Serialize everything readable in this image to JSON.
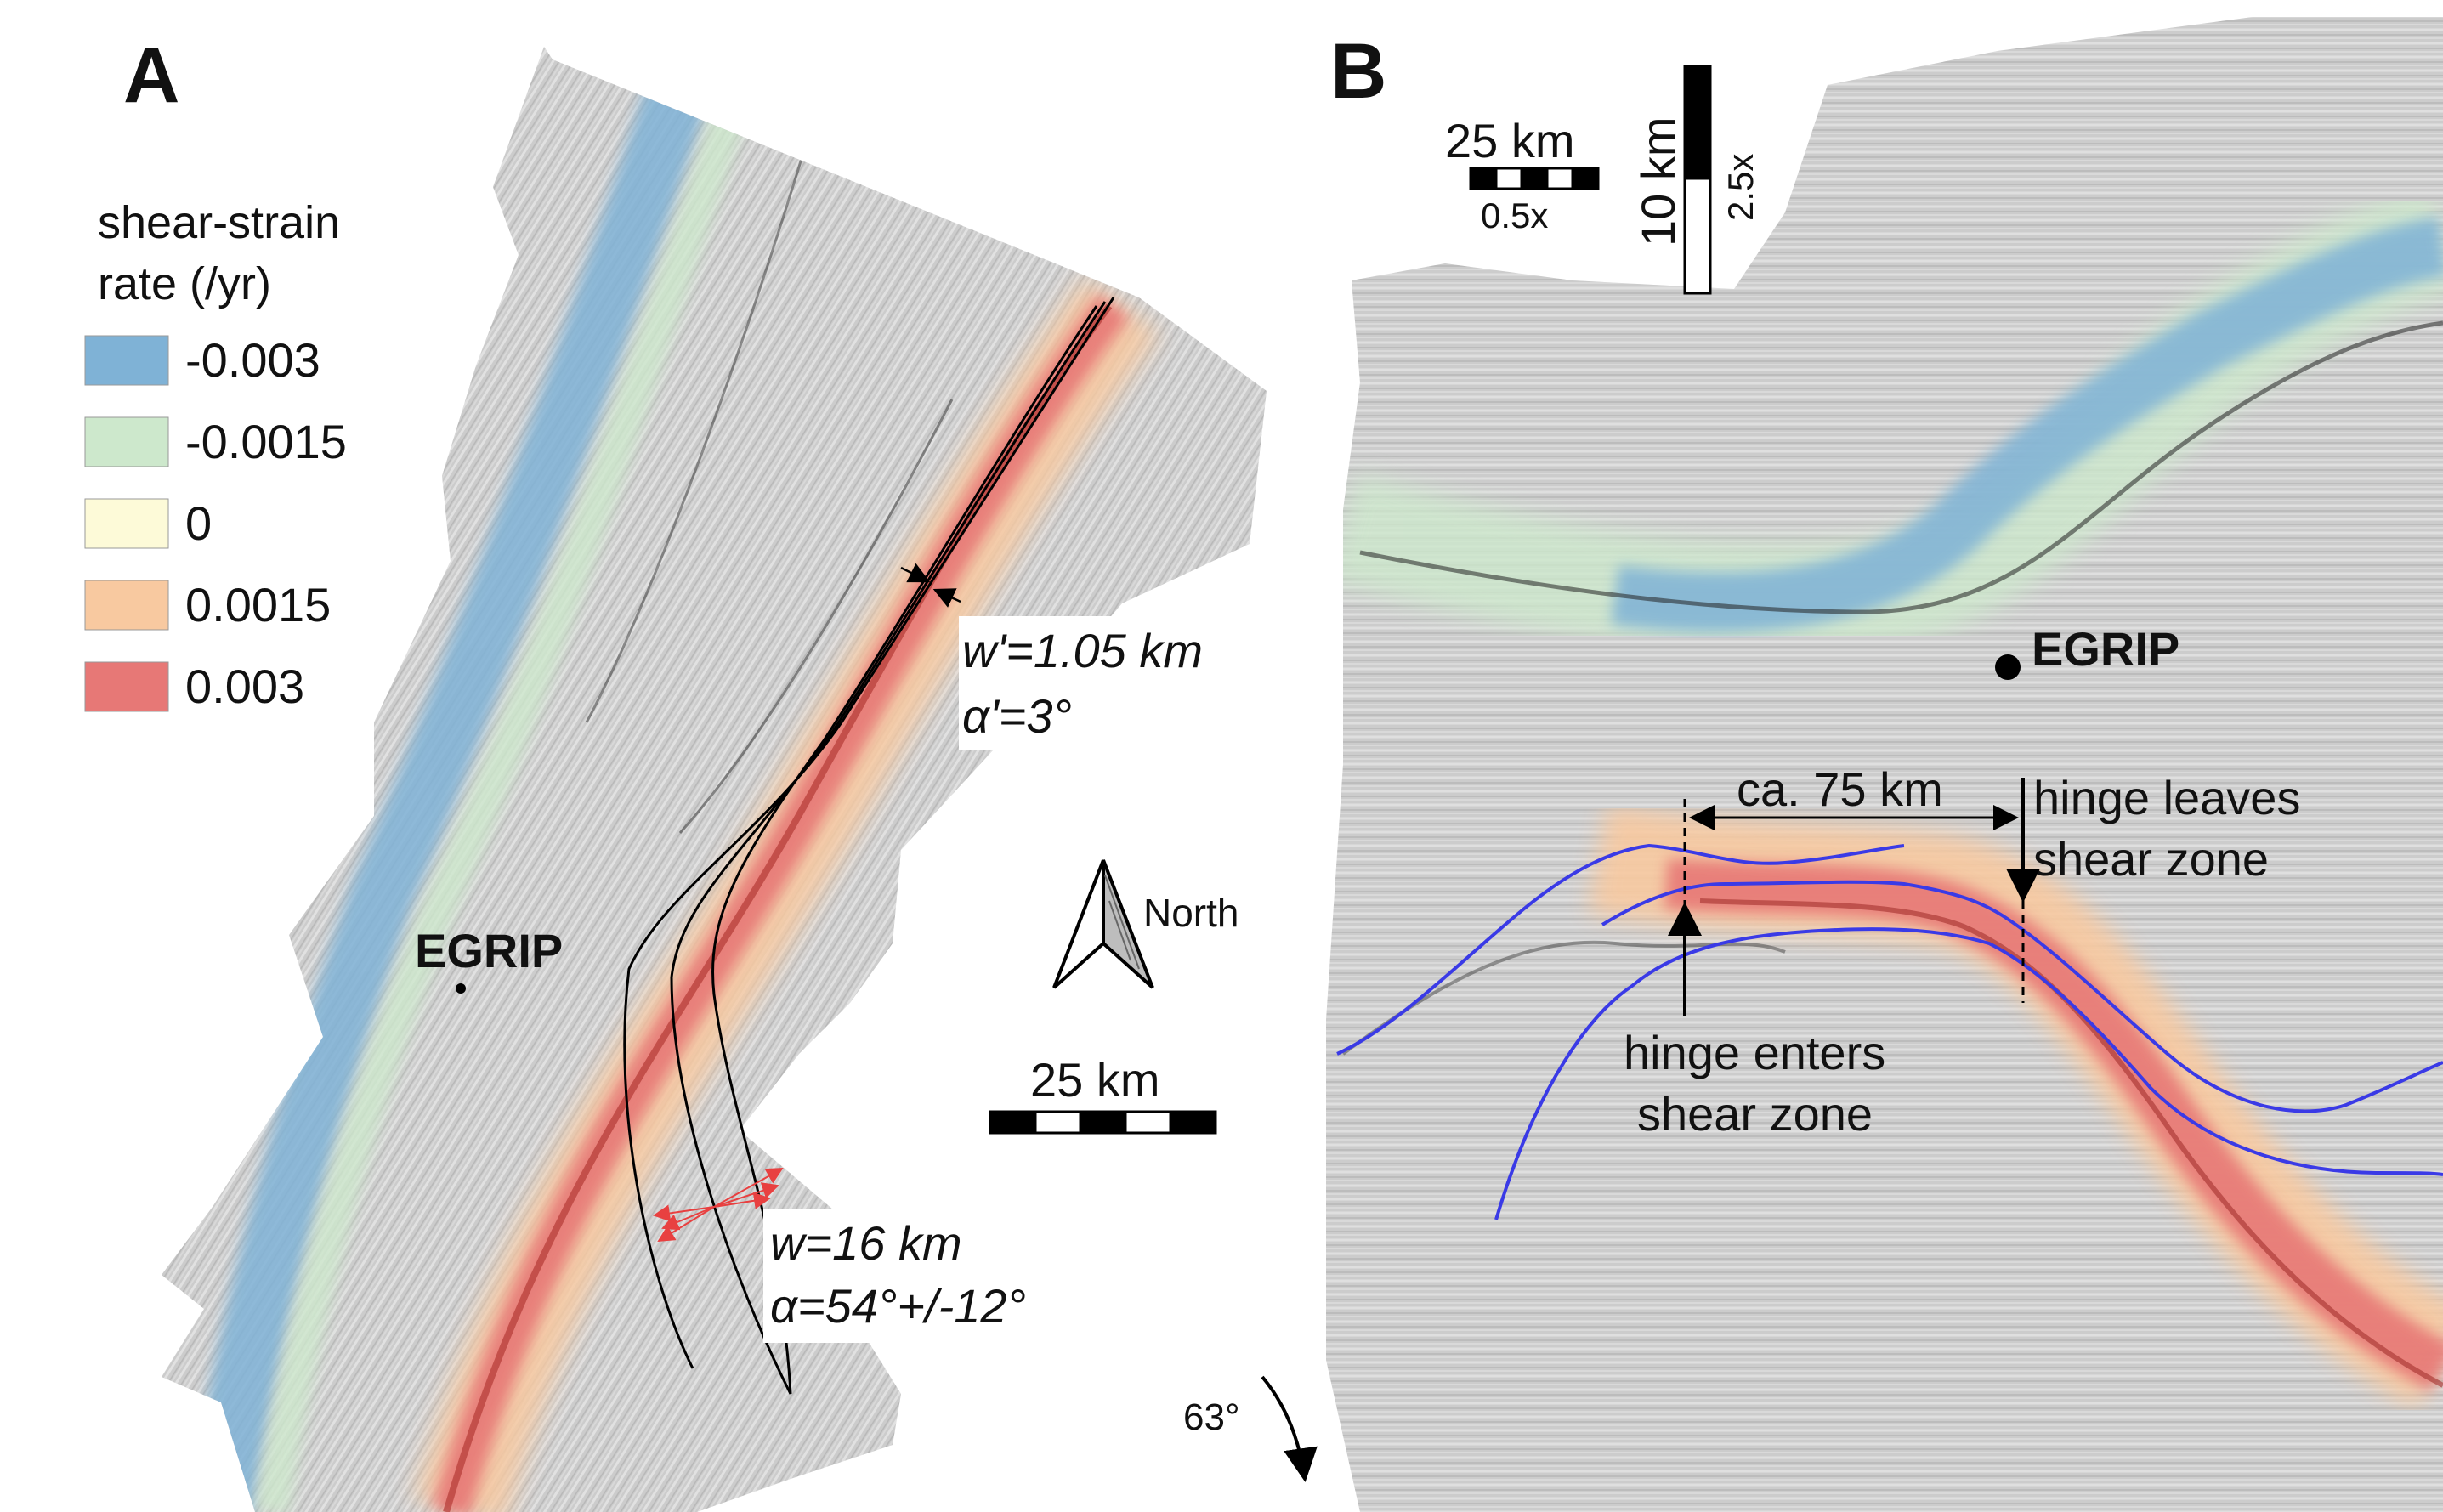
{
  "panel_a": {
    "label": "A",
    "legend": {
      "title_line1": "shear-strain",
      "title_line2": "rate (/yr)",
      "items": [
        {
          "label": "-0.003",
          "color": "#7fb2d6"
        },
        {
          "label": "-0.0015",
          "color": "#cde8cc"
        },
        {
          "label": "0",
          "color": "#fdfad8"
        },
        {
          "label": "0.0015",
          "color": "#f8c9a0"
        },
        {
          "label": "0.003",
          "color": "#e77876"
        }
      ]
    },
    "egrip_label": "EGRIP",
    "north_label": "North",
    "scale_label": "25 km",
    "annotation_narrow": {
      "w": "w'=1.05 km",
      "alpha": "α'=3°"
    },
    "annotation_wide": {
      "w": "w=16 km",
      "alpha": "α=54°+/-12°"
    }
  },
  "panel_b": {
    "label": "B",
    "hscale_label": "25 km",
    "hscale_factor": "0.5x",
    "vscale_label": "10 km",
    "vscale_factor": "2.5x",
    "egrip_label": "EGRIP",
    "distance_label": "ca. 75 km",
    "hinge_leaves_line1": "hinge leaves",
    "hinge_leaves_line2": "shear zone",
    "hinge_enters_line1": "hinge enters",
    "hinge_enters_line2": "shear zone",
    "rotation_label": "63°"
  }
}
